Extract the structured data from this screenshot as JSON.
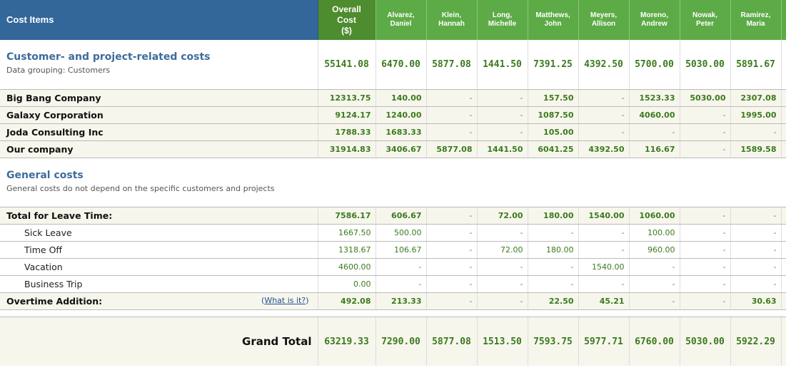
{
  "header": {
    "cost_items": "Cost Items",
    "overall": [
      "Overall",
      "Cost",
      "($)"
    ],
    "people": [
      [
        "Alvarez,",
        "Daniel"
      ],
      [
        "Klein,",
        "Hannah"
      ],
      [
        "Long,",
        "Michelle"
      ],
      [
        "Matthews,",
        "John"
      ],
      [
        "Meyers,",
        "Allison"
      ],
      [
        "Moreno,",
        "Andrew"
      ],
      [
        "Nowak,",
        "Peter"
      ],
      [
        "Ramirez,",
        "Maria"
      ]
    ]
  },
  "customer_section": {
    "title": "Customer- and project-related costs",
    "subtitle": "Data grouping: Customers",
    "totals": [
      "55141.08",
      "6470.00",
      "5877.08",
      "1441.50",
      "7391.25",
      "4392.50",
      "5700.00",
      "5030.00",
      "5891.67"
    ],
    "rows": [
      {
        "label": "Big Bang Company",
        "values": [
          "12313.75",
          "140.00",
          "-",
          "-",
          "157.50",
          "-",
          "1523.33",
          "5030.00",
          "2307.08"
        ]
      },
      {
        "label": "Galaxy Corporation",
        "values": [
          "9124.17",
          "1240.00",
          "-",
          "-",
          "1087.50",
          "-",
          "4060.00",
          "-",
          "1995.00"
        ]
      },
      {
        "label": "Joda Consulting Inc",
        "values": [
          "1788.33",
          "1683.33",
          "-",
          "-",
          "105.00",
          "-",
          "-",
          "-",
          "-"
        ]
      },
      {
        "label": "Our company",
        "values": [
          "31914.83",
          "3406.67",
          "5877.08",
          "1441.50",
          "6041.25",
          "4392.50",
          "116.67",
          "-",
          "1589.58"
        ]
      }
    ]
  },
  "general_section": {
    "title": "General costs",
    "subtitle": "General costs do not depend on the specific customers and projects",
    "leave_total": {
      "label": "Total for Leave Time:",
      "values": [
        "7586.17",
        "606.67",
        "-",
        "72.00",
        "180.00",
        "1540.00",
        "1060.00",
        "-",
        "-"
      ]
    },
    "leave_items": [
      {
        "label": "Sick Leave",
        "values": [
          "1667.50",
          "500.00",
          "-",
          "-",
          "-",
          "-",
          "100.00",
          "-",
          "-"
        ]
      },
      {
        "label": "Time Off",
        "values": [
          "1318.67",
          "106.67",
          "-",
          "72.00",
          "180.00",
          "-",
          "960.00",
          "-",
          "-"
        ]
      },
      {
        "label": "Vacation",
        "values": [
          "4600.00",
          "-",
          "-",
          "-",
          "-",
          "1540.00",
          "-",
          "-",
          "-"
        ]
      },
      {
        "label": "Business Trip",
        "values": [
          "0.00",
          "-",
          "-",
          "-",
          "-",
          "-",
          "-",
          "-",
          "-"
        ]
      }
    ],
    "overtime": {
      "label": "Overtime Addition:",
      "link": "What is it?",
      "values": [
        "492.08",
        "213.33",
        "-",
        "-",
        "22.50",
        "45.21",
        "-",
        "-",
        "30.63"
      ]
    }
  },
  "grand_total": {
    "label": "Grand Total",
    "values": [
      "63219.33",
      "7290.00",
      "5877.08",
      "1513.50",
      "7593.75",
      "5977.71",
      "6760.00",
      "5030.00",
      "5922.29"
    ]
  }
}
